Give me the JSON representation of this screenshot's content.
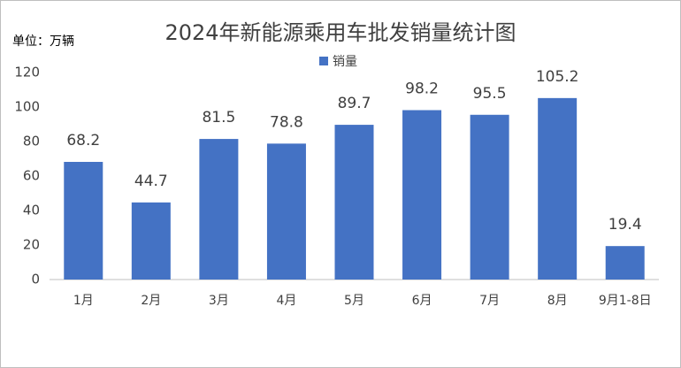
{
  "chart_data": {
    "type": "bar",
    "title": "2024年新能源乘用车批发销量统计图",
    "y_label": "单位：万辆",
    "categories": [
      "1月",
      "2月",
      "3月",
      "4月",
      "5月",
      "6月",
      "7月",
      "8月",
      "9月1-8日"
    ],
    "series": [
      {
        "name": "销量",
        "color": "#4472c4",
        "values": [
          68.2,
          44.7,
          81.5,
          78.8,
          89.7,
          98.2,
          95.5,
          105.2,
          19.4
        ]
      }
    ],
    "ylim": [
      0,
      120
    ],
    "yticks": [
      0,
      20,
      40,
      60,
      80,
      100,
      120
    ],
    "grid": false,
    "legend": "top"
  }
}
